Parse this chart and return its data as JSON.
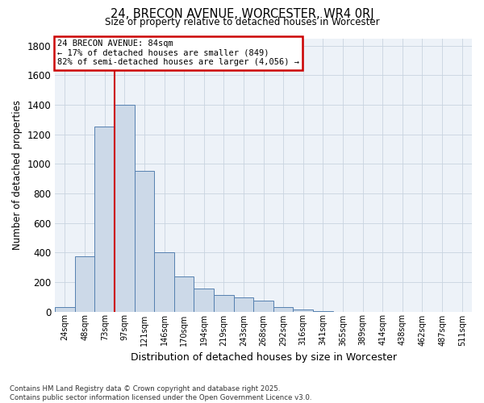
{
  "title1": "24, BRECON AVENUE, WORCESTER, WR4 0RJ",
  "title2": "Size of property relative to detached houses in Worcester",
  "xlabel": "Distribution of detached houses by size in Worcester",
  "ylabel": "Number of detached properties",
  "categories": [
    "24sqm",
    "48sqm",
    "73sqm",
    "97sqm",
    "121sqm",
    "146sqm",
    "170sqm",
    "194sqm",
    "219sqm",
    "243sqm",
    "268sqm",
    "292sqm",
    "316sqm",
    "341sqm",
    "365sqm",
    "389sqm",
    "414sqm",
    "438sqm",
    "462sqm",
    "487sqm",
    "511sqm"
  ],
  "values": [
    30,
    375,
    1250,
    1400,
    950,
    400,
    240,
    155,
    110,
    95,
    75,
    30,
    15,
    5,
    0,
    0,
    0,
    0,
    0,
    0,
    0
  ],
  "bar_color": "#ccd9e8",
  "bar_edge_color": "#5580b0",
  "bar_edge_width": 0.7,
  "vline_color": "#cc0000",
  "annotation_line1": "24 BRECON AVENUE: 84sqm",
  "annotation_line2": "← 17% of detached houses are smaller (849)",
  "annotation_line3": "82% of semi-detached houses are larger (4,056) →",
  "annotation_box_color": "#cc0000",
  "ylim": [
    0,
    1850
  ],
  "yticks": [
    0,
    200,
    400,
    600,
    800,
    1000,
    1200,
    1400,
    1600,
    1800
  ],
  "grid_color": "#c8d4e0",
  "bg_color": "#edf2f8",
  "footer1": "Contains HM Land Registry data © Crown copyright and database right 2025.",
  "footer2": "Contains public sector information licensed under the Open Government Licence v3.0."
}
